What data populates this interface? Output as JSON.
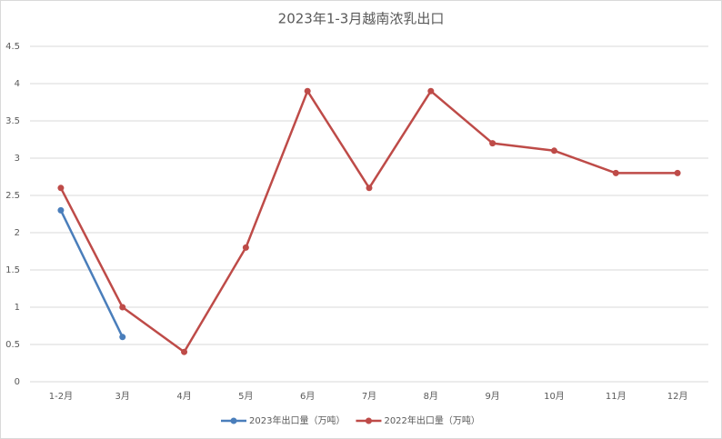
{
  "chart_data": {
    "type": "line",
    "title": "2023年1-3月越南浓乳出口",
    "categories": [
      "1-2月",
      "3月",
      "4月",
      "5月",
      "6月",
      "7月",
      "8月",
      "9月",
      "10月",
      "11月",
      "12月"
    ],
    "series": [
      {
        "name": "2023年出口量（万吨）",
        "color": "#4a7ebb",
        "values": [
          2.3,
          0.6,
          null,
          null,
          null,
          null,
          null,
          null,
          null,
          null,
          null
        ]
      },
      {
        "name": "2022年出口量（万吨）",
        "color": "#be4b48",
        "values": [
          2.6,
          1.0,
          0.4,
          1.8,
          3.9,
          2.6,
          3.9,
          3.2,
          3.1,
          2.8,
          2.8
        ]
      }
    ],
    "ylim": [
      0,
      4.5
    ],
    "yticks": [
      0,
      0.5,
      1,
      1.5,
      2,
      2.5,
      3,
      3.5,
      4,
      4.5
    ],
    "grid": true,
    "legend": "bottom"
  }
}
